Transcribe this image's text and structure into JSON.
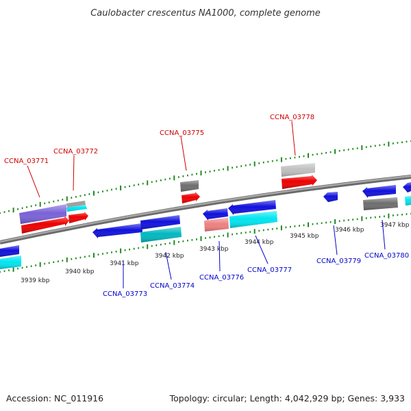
{
  "title": "Caulobacter crescentus NA1000, complete genome",
  "accession": "Accession: NC_011916",
  "summary": "Topology: circular; Length: 4,042,929 bp; Genes: 3,933",
  "colors": {
    "backbone": "#8c8c8c",
    "tick": "#1e8a1e",
    "forward_label": "#cc0000",
    "reverse_label": "#0000cc",
    "blue": "#1010dd",
    "red": "#ee0000",
    "cyan": "#00e5f0",
    "dark_cyan": "#00b8c0",
    "purple": "#7a62d8",
    "gray": "#6e6e6e",
    "light_gray": "#c0c0c0",
    "salmon": "#ef8080"
  },
  "scale_labels": [
    "3939 kbp",
    "3940 kbp",
    "3941 kbp",
    "3942 kbp",
    "3943 kbp",
    "3944 kbp",
    "3945 kbp",
    "3946 kbp",
    "3947 kbp"
  ],
  "gene_labels": {
    "forward": [
      "CCNA_03771",
      "CCNA_03772",
      "CCNA_03775",
      "CCNA_03778"
    ],
    "reverse": [
      "CCNA_03773",
      "CCNA_03774",
      "CCNA_03776",
      "CCNA_03777",
      "CCNA_03779",
      "CCNA_03780"
    ]
  }
}
